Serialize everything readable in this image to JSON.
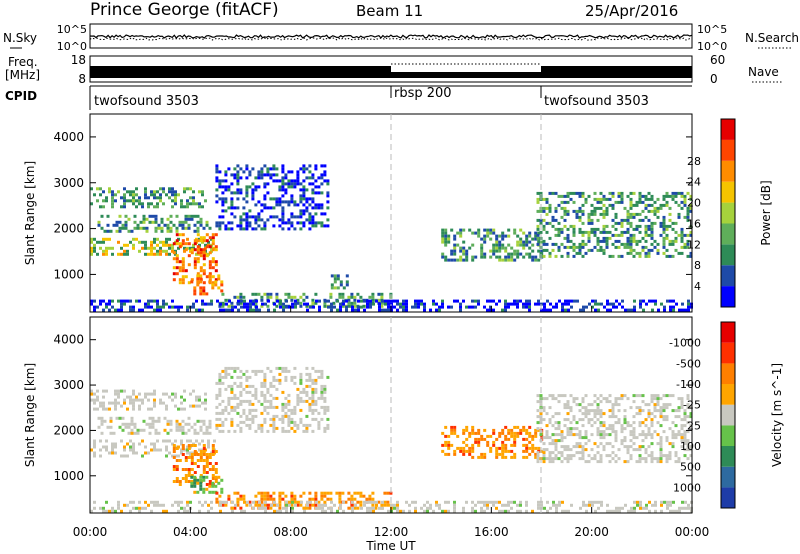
{
  "header": {
    "title": "Prince George (fitACF)",
    "beam": "Beam 11",
    "date": "25/Apr/2016"
  },
  "noise_panel": {
    "left_label": "N.Sky",
    "right_label": "N.Search",
    "tick_top": "10^5",
    "tick_bottom": "10^0",
    "right_tick_top": "10^5",
    "right_tick_bottom": "10^0"
  },
  "freq_panel": {
    "left_label_1": "Freq.",
    "left_label_2": "[MHz]",
    "tick_top": "18",
    "tick_bottom": "8",
    "right_label": "Nave",
    "right_tick_top": "60",
    "right_tick_bottom": "0"
  },
  "cpid": {
    "label": "CPID",
    "segments": [
      {
        "start": 0,
        "end": 12,
        "name": "twofsound 3503"
      },
      {
        "start": 12,
        "end": 18,
        "name": "rbsp 200"
      },
      {
        "start": 18,
        "end": 24,
        "name": "twofsound 3503"
      }
    ]
  },
  "chart_data": [
    {
      "type": "heatmap",
      "panel": "power",
      "ylabel": "Slant Range [km]",
      "colorbar_label": "Power [dB]",
      "ylim": [
        180,
        4500
      ],
      "xlim": [
        0,
        24
      ],
      "yticks": [
        1000,
        2000,
        3000,
        4000
      ],
      "colorbar_ticks": [
        "4",
        "8",
        "12",
        "16",
        "20",
        "24",
        "28"
      ],
      "colorbar_colors": [
        "#0000ff",
        "#1e4aa8",
        "#2e8b57",
        "#5fae5a",
        "#a6d23c",
        "#f5c400",
        "#ff8c00",
        "#ff4500",
        "#e60000"
      ],
      "regions": [
        {
          "t0": 0.0,
          "t1": 4.6,
          "r0": 2450,
          "r1": 2900,
          "level": "mid"
        },
        {
          "t0": 0.3,
          "t1": 4.8,
          "r0": 1950,
          "r1": 2300,
          "level": "mid"
        },
        {
          "t0": 0.0,
          "t1": 5.0,
          "r0": 1450,
          "r1": 1800,
          "level": "mid-high"
        },
        {
          "t0": 3.3,
          "t1": 5.0,
          "r0": 800,
          "r1": 1900,
          "level": "high"
        },
        {
          "t0": 4.0,
          "t1": 5.3,
          "r0": 600,
          "r1": 1000,
          "level": "high"
        },
        {
          "t0": 5.0,
          "t1": 9.5,
          "r0": 2000,
          "r1": 3400,
          "level": "low"
        },
        {
          "t0": 9.6,
          "t1": 10.3,
          "r0": 700,
          "r1": 1000,
          "level": "mid"
        },
        {
          "t0": 5.0,
          "t1": 12.0,
          "r0": 300,
          "r1": 600,
          "level": "mid"
        },
        {
          "t0": 14.0,
          "t1": 18.0,
          "r0": 1300,
          "r1": 2000,
          "level": "mid"
        },
        {
          "t0": 17.8,
          "t1": 24.0,
          "r0": 1400,
          "r1": 2800,
          "level": "mid"
        },
        {
          "t0": 0.0,
          "t1": 24.0,
          "r0": 200,
          "r1": 450,
          "level": "low"
        }
      ]
    },
    {
      "type": "heatmap",
      "panel": "velocity",
      "ylabel": "Slant Range [km]",
      "xlabel": "Time UT",
      "colorbar_label": "Velocity [m s^-1]",
      "ylim": [
        180,
        4500
      ],
      "xlim": [
        0,
        24
      ],
      "yticks": [
        1000,
        2000,
        3000,
        4000
      ],
      "xticks": [
        "00:00",
        "04:00",
        "08:00",
        "12:00",
        "16:00",
        "20:00",
        "00:00"
      ],
      "colorbar_ticks": [
        "1000",
        "500",
        "100",
        "25",
        "-25",
        "-100",
        "-500",
        "-1000"
      ],
      "colorbar_colors": [
        "#1e3ca8",
        "#2d6aa0",
        "#2e8b57",
        "#66c24a",
        "#c8c8c0",
        "#ffa500",
        "#ff7f00",
        "#ff3000",
        "#e60000"
      ],
      "regions": [
        {
          "t0": 0.0,
          "t1": 4.6,
          "r0": 2450,
          "r1": 2900,
          "level": "grey"
        },
        {
          "t0": 0.3,
          "t1": 4.8,
          "r0": 1950,
          "r1": 2300,
          "level": "grey"
        },
        {
          "t0": 0.0,
          "t1": 5.0,
          "r0": 1450,
          "r1": 1800,
          "level": "grey"
        },
        {
          "t0": 3.3,
          "t1": 5.0,
          "r0": 800,
          "r1": 1700,
          "level": "orange"
        },
        {
          "t0": 4.0,
          "t1": 5.3,
          "r0": 650,
          "r1": 1000,
          "level": "green"
        },
        {
          "t0": 5.0,
          "t1": 9.5,
          "r0": 2000,
          "r1": 3400,
          "level": "grey"
        },
        {
          "t0": 5.0,
          "t1": 12.0,
          "r0": 300,
          "r1": 650,
          "level": "orange"
        },
        {
          "t0": 14.0,
          "t1": 18.0,
          "r0": 1400,
          "r1": 2100,
          "level": "orange"
        },
        {
          "t0": 17.8,
          "t1": 24.0,
          "r0": 1300,
          "r1": 2800,
          "level": "grey"
        },
        {
          "t0": 0.0,
          "t1": 24.0,
          "r0": 200,
          "r1": 450,
          "level": "grey"
        }
      ]
    }
  ]
}
